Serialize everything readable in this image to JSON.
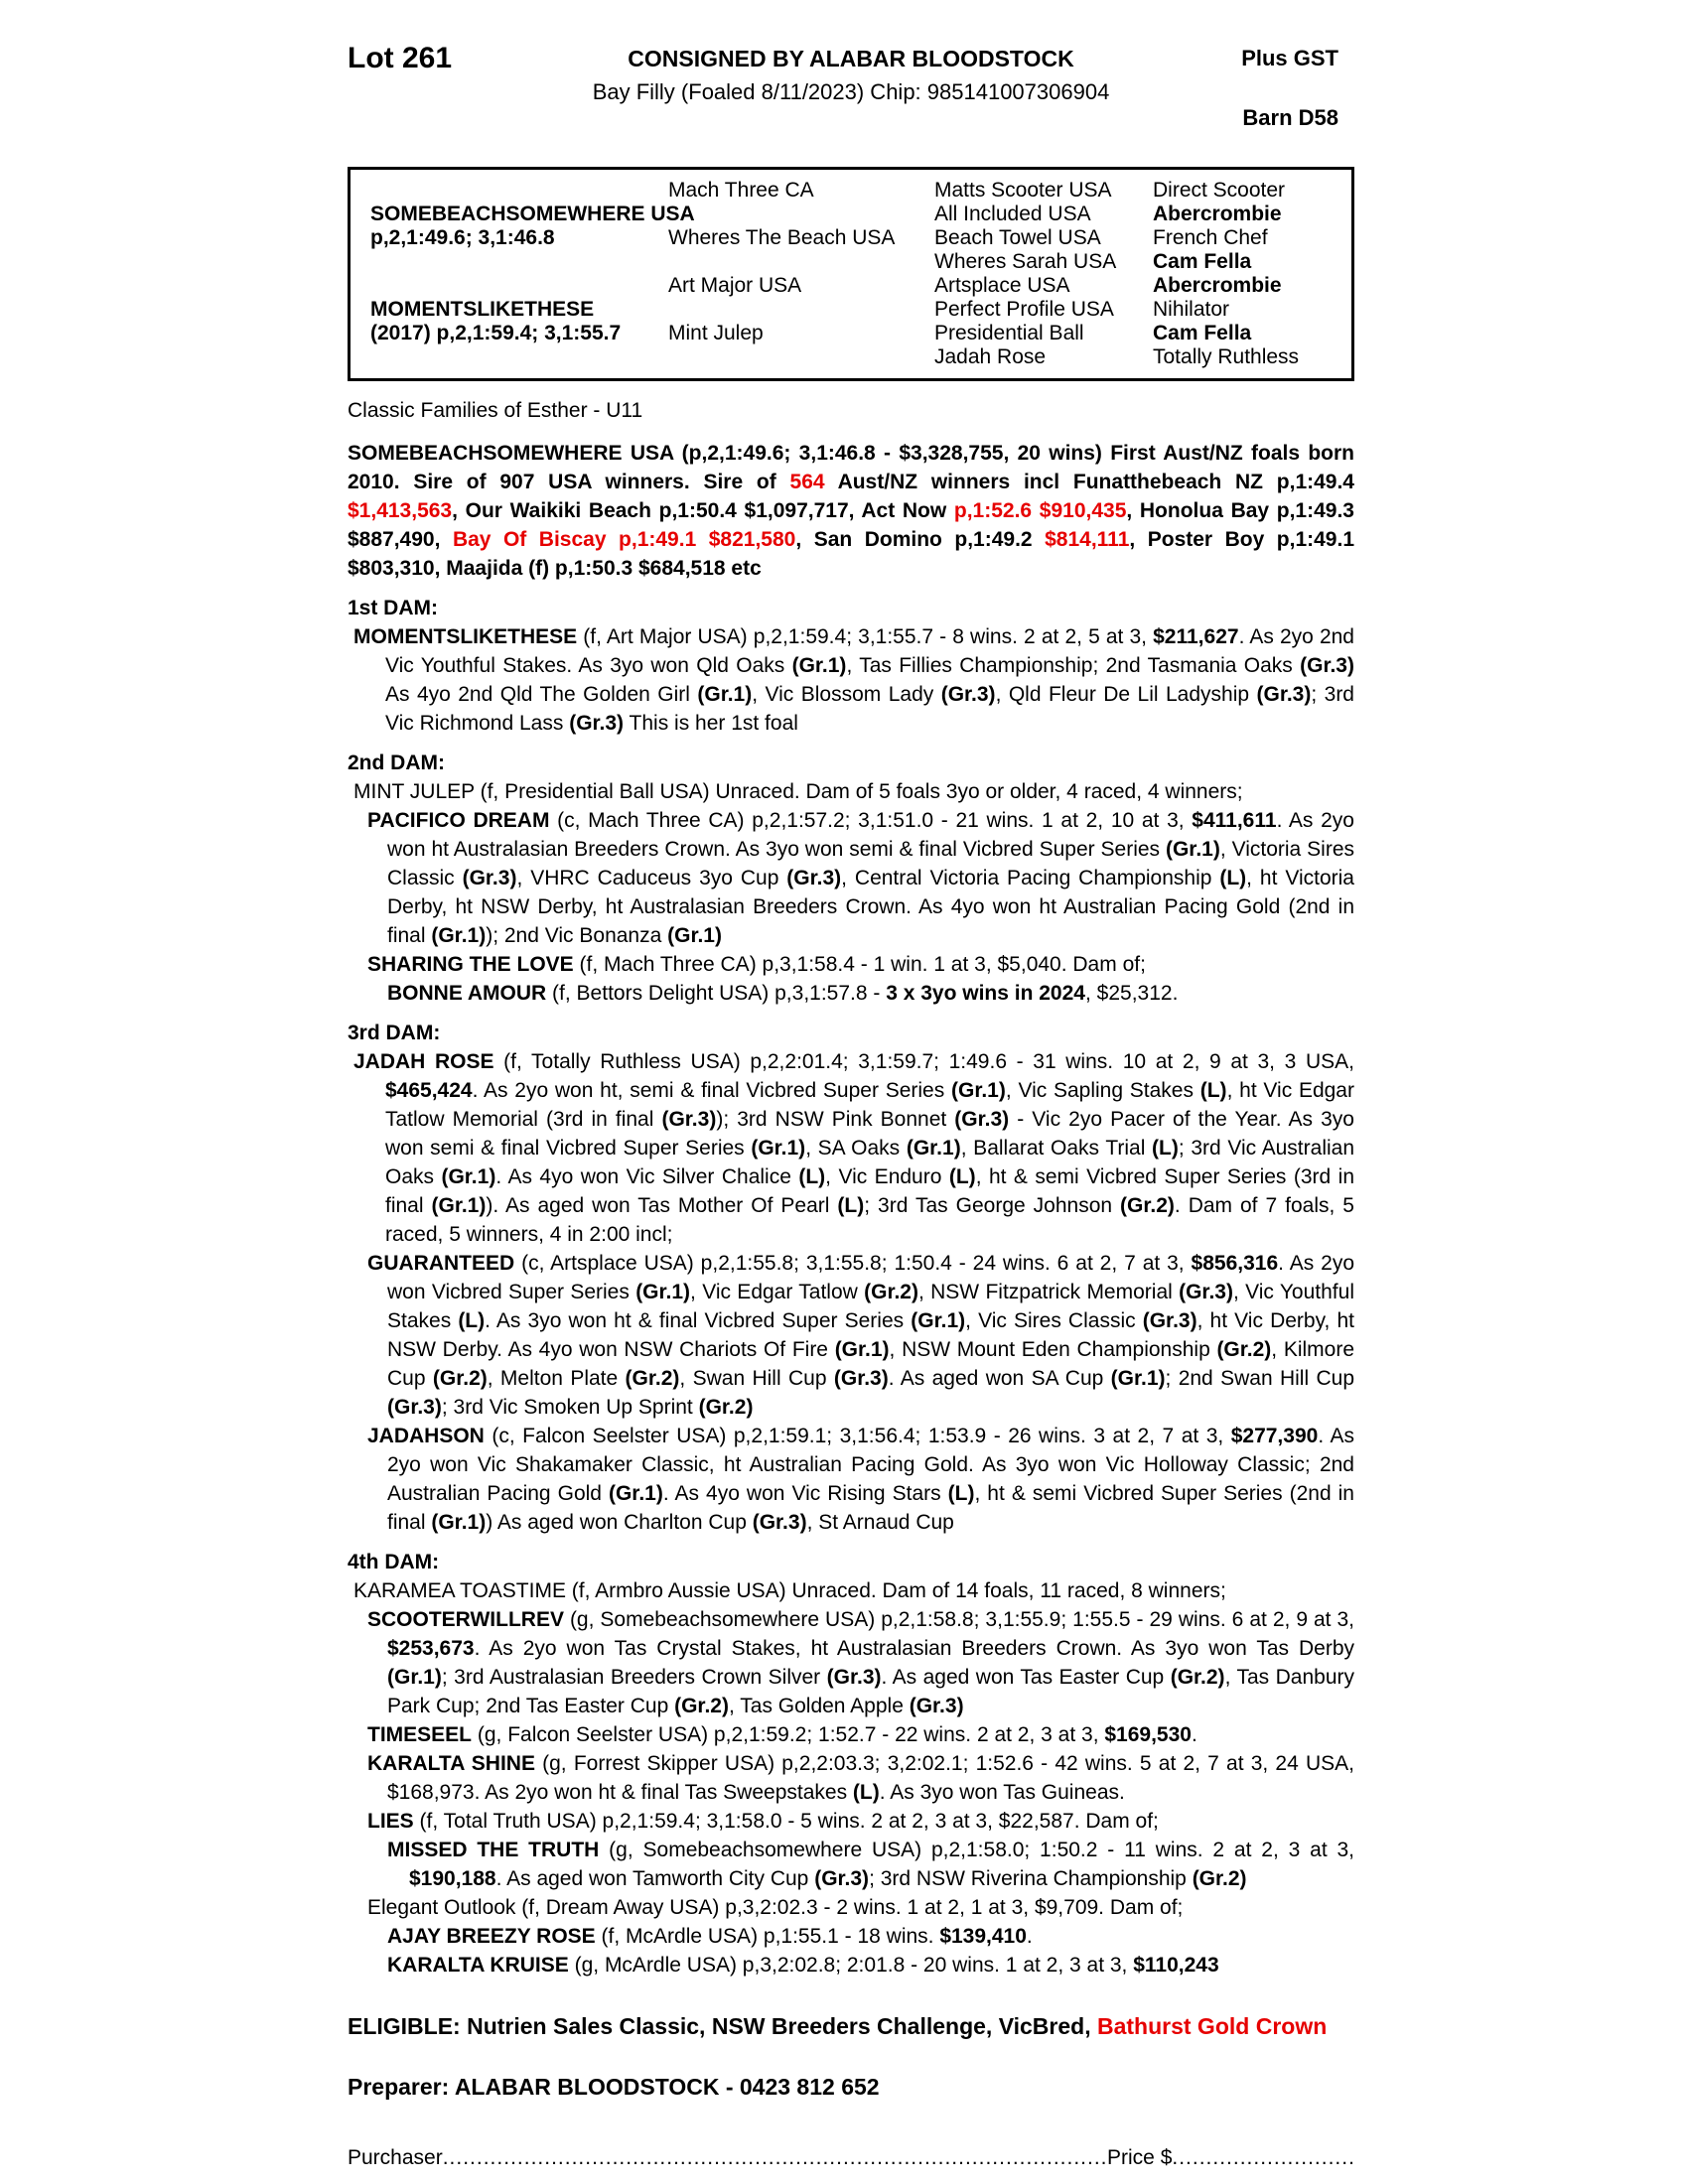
{
  "colors": {
    "accent_red": "#e60000",
    "text": "#000000",
    "table_border": "#000000"
  },
  "header": {
    "lot": "Lot 261",
    "consignor": "CONSIGNED BY ALABAR BLOODSTOCK",
    "subtitle": "Bay Filly (Foaled 8/11/2023) Chip: 985141007306904",
    "gst": "Plus GST",
    "barn": "Barn D58"
  },
  "pedigree": {
    "grid": [
      [
        {
          "t": "",
          "b": false
        },
        {
          "t": "Mach Three CA",
          "b": false
        },
        {
          "t": "Matts Scooter USA",
          "b": false
        },
        {
          "t": "Direct Scooter",
          "b": false
        }
      ],
      [
        {
          "t": "SOMEBEACHSOMEWHERE USA",
          "b": true
        },
        {
          "t": "",
          "b": false
        },
        {
          "t": "All Included USA",
          "b": false
        },
        {
          "t": "Abercrombie",
          "b": true
        }
      ],
      [
        {
          "t": "p,2,1:49.6; 3,1:46.8",
          "b": true
        },
        {
          "t": "Wheres The Beach USA",
          "b": false
        },
        {
          "t": "Beach Towel USA",
          "b": false
        },
        {
          "t": "French Chef",
          "b": false
        }
      ],
      [
        {
          "t": "",
          "b": false
        },
        {
          "t": "",
          "b": false
        },
        {
          "t": "Wheres Sarah USA",
          "b": false
        },
        {
          "t": "Cam Fella",
          "b": true
        }
      ],
      [
        {
          "t": "",
          "b": false
        },
        {
          "t": "Art Major USA",
          "b": false
        },
        {
          "t": "Artsplace USA",
          "b": false
        },
        {
          "t": "Abercrombie",
          "b": true
        }
      ],
      [
        {
          "t": "MOMENTSLIKETHESE",
          "b": true
        },
        {
          "t": "",
          "b": false
        },
        {
          "t": "Perfect Profile USA",
          "b": false
        },
        {
          "t": "Nihilator",
          "b": false
        }
      ],
      [
        {
          "t": "(2017) p,2,1:59.4; 3,1:55.7",
          "b": true
        },
        {
          "t": "Mint Julep",
          "b": false
        },
        {
          "t": "Presidential Ball",
          "b": false
        },
        {
          "t": "Cam Fella",
          "b": true
        }
      ],
      [
        {
          "t": "",
          "b": false
        },
        {
          "t": "",
          "b": false
        },
        {
          "t": "Jadah Rose",
          "b": false
        },
        {
          "t": "Totally Ruthless",
          "b": false
        }
      ]
    ]
  },
  "family_line": "Classic Families of Esther - U11",
  "sire_para": [
    {
      "t": "SOMEBEACHSOMEWHERE USA (p,2,1:49.6;  3,1:46.8 - $3,328,755, 20 wins) First Aust/NZ foals born 2010. Sire of 907 USA winners. Sire of ",
      "b": true
    },
    {
      "t": "564",
      "b": true,
      "r": true
    },
    {
      "t": " Aust/NZ winners incl Funatthebeach NZ p,1:49.4 ",
      "b": true
    },
    {
      "t": "$1,413,563",
      "b": true,
      "r": true
    },
    {
      "t": ", Our Waikiki Beach p,1:50.4 $1,097,717, Act Now ",
      "b": true
    },
    {
      "t": "p,1:52.6 $910,435",
      "b": true,
      "r": true
    },
    {
      "t": ", Honolua Bay p,1:49.3 $887,490, ",
      "b": true
    },
    {
      "t": "Bay Of Biscay p,1:49.1 $821,580",
      "b": true,
      "r": true
    },
    {
      "t": ", San Domino p,1:49.2 ",
      "b": true
    },
    {
      "t": "$814,111",
      "b": true,
      "r": true
    },
    {
      "t": ", Poster Boy p,1:49.1 $803,310, Maajida (f) p,1:50.3 $684,518 etc",
      "b": true
    }
  ],
  "sections": [
    {
      "heading": "1st DAM:",
      "entries": [
        {
          "indent": 0,
          "segments": [
            {
              "t": "MOMENTSLIKETHESE",
              "b": true
            },
            {
              "t": " (f, Art Major USA) p,2,1:59.4; 3,1:55.7 - 8 wins. 2 at 2, 5 at 3, "
            },
            {
              "t": "$211,627",
              "b": true
            },
            {
              "t": ". As 2yo 2nd Vic Youthful Stakes. As 3yo won Qld Oaks "
            },
            {
              "t": "(Gr.1)",
              "b": true
            },
            {
              "t": ", Tas Fillies Championship; 2nd Tasmania Oaks "
            },
            {
              "t": "(Gr.3)",
              "b": true
            },
            {
              "t": " As 4yo 2nd Qld The Golden Girl "
            },
            {
              "t": "(Gr.1)",
              "b": true
            },
            {
              "t": ", Vic Blossom Lady "
            },
            {
              "t": "(Gr.3)",
              "b": true
            },
            {
              "t": ", Qld Fleur De Lil Ladyship "
            },
            {
              "t": "(Gr.3)",
              "b": true
            },
            {
              "t": "; 3rd Vic Richmond Lass "
            },
            {
              "t": "(Gr.3)",
              "b": true
            },
            {
              "t": " This is her 1st foal"
            }
          ]
        }
      ]
    },
    {
      "heading": "2nd DAM:",
      "entries": [
        {
          "indent": 0,
          "segments": [
            {
              "t": "MINT JULEP (f, Presidential Ball USA) Unraced. Dam of 5 foals 3yo or older, 4 raced, 4 winners;"
            }
          ]
        },
        {
          "indent": 1,
          "segments": [
            {
              "t": "PACIFICO DREAM",
              "b": true
            },
            {
              "t": " (c, Mach Three CA) p,2,1:57.2; 3,1:51.0 - 21 wins. 1 at 2, 10 at 3, "
            },
            {
              "t": "$411,611",
              "b": true
            },
            {
              "t": ". As 2yo won ht Australasian Breeders Crown. As 3yo won semi & final Vicbred Super Series "
            },
            {
              "t": "(Gr.1)",
              "b": true
            },
            {
              "t": ", Victoria Sires Classic "
            },
            {
              "t": "(Gr.3)",
              "b": true
            },
            {
              "t": ", VHRC Caduceus 3yo Cup "
            },
            {
              "t": "(Gr.3)",
              "b": true
            },
            {
              "t": ", Central Victoria Pacing Championship "
            },
            {
              "t": "(L)",
              "b": true
            },
            {
              "t": ", ht Victoria Derby, ht NSW Derby, ht Australasian Breeders Crown. As 4yo won ht Australian Pacing Gold (2nd in final "
            },
            {
              "t": "(Gr.1)",
              "b": true
            },
            {
              "t": "); 2nd Vic Bonanza "
            },
            {
              "t": "(Gr.1)",
              "b": true
            }
          ]
        },
        {
          "indent": 1,
          "segments": [
            {
              "t": "SHARING THE LOVE",
              "b": true
            },
            {
              "t": " (f, Mach Three CA) p,3,1:58.4 - 1 win. 1 at 3, $5,040. Dam of;"
            }
          ]
        },
        {
          "indent": 2,
          "segments": [
            {
              "t": "BONNE AMOUR",
              "b": true
            },
            {
              "t": " (f, Bettors Delight USA) p,3,1:57.8 - "
            },
            {
              "t": "3 x 3yo wins in 2024",
              "b": true
            },
            {
              "t": ", $25,312."
            }
          ]
        }
      ]
    },
    {
      "heading": "3rd DAM:",
      "entries": [
        {
          "indent": 0,
          "segments": [
            {
              "t": "JADAH ROSE",
              "b": true
            },
            {
              "t": " (f, Totally Ruthless USA) p,2,2:01.4; 3,1:59.7; 1:49.6 - 31 wins. 10 at 2, 9 at 3, 3 USA, "
            },
            {
              "t": "$465,424",
              "b": true
            },
            {
              "t": ". As 2yo won ht, semi & final Vicbred Super Series "
            },
            {
              "t": "(Gr.1)",
              "b": true
            },
            {
              "t": ", Vic Sapling Stakes "
            },
            {
              "t": "(L)",
              "b": true
            },
            {
              "t": ", ht Vic Edgar Tatlow Memorial (3rd in final "
            },
            {
              "t": "(Gr.3)",
              "b": true
            },
            {
              "t": "); 3rd NSW Pink Bonnet "
            },
            {
              "t": "(Gr.3)",
              "b": true
            },
            {
              "t": " - Vic 2yo Pacer of the Year. As 3yo won semi & final Vicbred Super Series "
            },
            {
              "t": "(Gr.1)",
              "b": true
            },
            {
              "t": ", SA Oaks "
            },
            {
              "t": "(Gr.1)",
              "b": true
            },
            {
              "t": ", Ballarat Oaks Trial "
            },
            {
              "t": "(L)",
              "b": true
            },
            {
              "t": "; 3rd Vic Australian Oaks "
            },
            {
              "t": "(Gr.1)",
              "b": true
            },
            {
              "t": ". As 4yo won Vic Silver Chalice "
            },
            {
              "t": "(L)",
              "b": true
            },
            {
              "t": ", Vic Enduro "
            },
            {
              "t": "(L)",
              "b": true
            },
            {
              "t": ", ht & semi Vicbred Super Series (3rd in final "
            },
            {
              "t": "(Gr.1)",
              "b": true
            },
            {
              "t": "). As aged won Tas Mother Of Pearl "
            },
            {
              "t": "(L)",
              "b": true
            },
            {
              "t": "; 3rd Tas George Johnson "
            },
            {
              "t": "(Gr.2)",
              "b": true
            },
            {
              "t": ". Dam of 7 foals, 5 raced, 5 winners, 4 in 2:00 incl;"
            }
          ]
        },
        {
          "indent": 1,
          "segments": [
            {
              "t": "GUARANTEED",
              "b": true
            },
            {
              "t": " (c, Artsplace USA) p,2,1:55.8; 3,1:55.8; 1:50.4 - 24 wins. 6 at 2, 7 at 3, "
            },
            {
              "t": "$856,316",
              "b": true
            },
            {
              "t": ". As 2yo won Vicbred Super Series "
            },
            {
              "t": "(Gr.1)",
              "b": true
            },
            {
              "t": ", Vic Edgar Tatlow "
            },
            {
              "t": "(Gr.2)",
              "b": true
            },
            {
              "t": ", NSW Fitzpatrick Memorial "
            },
            {
              "t": "(Gr.3)",
              "b": true
            },
            {
              "t": ", Vic Youthful Stakes "
            },
            {
              "t": "(L)",
              "b": true
            },
            {
              "t": ". As 3yo won ht & final Vicbred Super Series "
            },
            {
              "t": "(Gr.1)",
              "b": true
            },
            {
              "t": ", Vic Sires Classic "
            },
            {
              "t": "(Gr.3)",
              "b": true
            },
            {
              "t": ", ht Vic Derby, ht NSW Derby. As 4yo won NSW Chariots Of Fire "
            },
            {
              "t": "(Gr.1)",
              "b": true
            },
            {
              "t": ", NSW Mount Eden Championship "
            },
            {
              "t": "(Gr.2)",
              "b": true
            },
            {
              "t": ", Kilmore Cup "
            },
            {
              "t": "(Gr.2)",
              "b": true
            },
            {
              "t": ", Melton Plate "
            },
            {
              "t": "(Gr.2)",
              "b": true
            },
            {
              "t": ", Swan Hill Cup "
            },
            {
              "t": "(Gr.3)",
              "b": true
            },
            {
              "t": ". As aged won SA Cup "
            },
            {
              "t": "(Gr.1)",
              "b": true
            },
            {
              "t": "; 2nd Swan Hill Cup "
            },
            {
              "t": "(Gr.3)",
              "b": true
            },
            {
              "t": "; 3rd Vic Smoken Up Sprint "
            },
            {
              "t": "(Gr.2)",
              "b": true
            }
          ]
        },
        {
          "indent": 1,
          "segments": [
            {
              "t": "JADAHSON",
              "b": true
            },
            {
              "t": " (c, Falcon Seelster USA) p,2,1:59.1; 3,1:56.4; 1:53.9 - 26 wins. 3 at 2, 7 at 3, "
            },
            {
              "t": "$277,390",
              "b": true
            },
            {
              "t": ". As 2yo won Vic Shakamaker Classic, ht Australian Pacing Gold. As 3yo won Vic Holloway Classic; 2nd Australian Pacing Gold "
            },
            {
              "t": "(Gr.1)",
              "b": true
            },
            {
              "t": ". As 4yo won Vic Rising Stars "
            },
            {
              "t": "(L)",
              "b": true
            },
            {
              "t": ", ht & semi Vicbred Super Series (2nd in final "
            },
            {
              "t": "(Gr.1)",
              "b": true
            },
            {
              "t": ") As aged won Charlton Cup "
            },
            {
              "t": "(Gr.3)",
              "b": true
            },
            {
              "t": ", St Arnaud Cup"
            }
          ]
        }
      ]
    },
    {
      "heading": "4th DAM:",
      "entries": [
        {
          "indent": 0,
          "segments": [
            {
              "t": "KARAMEA TOASTIME (f, Armbro Aussie USA) Unraced. Dam of 14 foals, 11 raced, 8 winners;"
            }
          ]
        },
        {
          "indent": 1,
          "segments": [
            {
              "t": "SCOOTERWILLREV",
              "b": true
            },
            {
              "t": " (g, Somebeachsomewhere USA) p,2,1:58.8; 3,1:55.9; 1:55.5 - 29 wins. 6 at 2, 9 at 3, "
            },
            {
              "t": "$253,673",
              "b": true
            },
            {
              "t": ". As 2yo won Tas Crystal Stakes, ht Australasian Breeders Crown. As 3yo won Tas Derby "
            },
            {
              "t": "(Gr.1)",
              "b": true
            },
            {
              "t": "; 3rd Australasian Breeders Crown Silver "
            },
            {
              "t": "(Gr.3)",
              "b": true
            },
            {
              "t": ". As aged won Tas Easter Cup "
            },
            {
              "t": "(Gr.2)",
              "b": true
            },
            {
              "t": ", Tas Danbury Park Cup; 2nd Tas Easter Cup "
            },
            {
              "t": "(Gr.2)",
              "b": true
            },
            {
              "t": ", Tas Golden Apple "
            },
            {
              "t": "(Gr.3)",
              "b": true
            }
          ]
        },
        {
          "indent": 1,
          "segments": [
            {
              "t": "TIMESEEL",
              "b": true
            },
            {
              "t": " (g, Falcon Seelster USA) p,2,1:59.2; 1:52.7 - 22 wins. 2 at 2, 3 at 3, "
            },
            {
              "t": "$169,530",
              "b": true
            },
            {
              "t": "."
            }
          ]
        },
        {
          "indent": 1,
          "segments": [
            {
              "t": "KARALTA SHINE",
              "b": true
            },
            {
              "t": " (g, Forrest Skipper USA) p,2,2:03.3; 3,2:02.1; 1:52.6 - 42 wins. 5 at 2, 7 at 3, 24 USA, $168,973. As 2yo won ht & final Tas Sweepstakes "
            },
            {
              "t": "(L)",
              "b": true
            },
            {
              "t": ". As 3yo won Tas Guineas."
            }
          ]
        },
        {
          "indent": 1,
          "segments": [
            {
              "t": "LIES",
              "b": true
            },
            {
              "t": " (f, Total Truth USA) p,2,1:59.4; 3,1:58.0 - 5 wins. 2 at 2, 3 at 3, $22,587. Dam of;"
            }
          ]
        },
        {
          "indent": 2,
          "segments": [
            {
              "t": "MISSED THE TRUTH",
              "b": true
            },
            {
              "t": " (g, Somebeachsomewhere USA) p,2,1:58.0; 1:50.2 - 11 wins. 2 at 2, 3 at 3, "
            },
            {
              "t": "$190,188",
              "b": true
            },
            {
              "t": ". As aged won Tamworth City Cup "
            },
            {
              "t": "(Gr.3)",
              "b": true
            },
            {
              "t": "; 3rd NSW Riverina Championship "
            },
            {
              "t": "(Gr.2)",
              "b": true
            }
          ]
        },
        {
          "indent": 1,
          "segments": [
            {
              "t": "Elegant Outlook (f, Dream Away USA) p,3,2:02.3 - 2 wins. 1 at 2, 1 at 3, $9,709. Dam of;"
            }
          ]
        },
        {
          "indent": 2,
          "segments": [
            {
              "t": "AJAY BREEZY ROSE",
              "b": true
            },
            {
              "t": " (f, McArdle USA) p,1:55.1 - 18 wins. "
            },
            {
              "t": "$139,410",
              "b": true
            },
            {
              "t": "."
            }
          ]
        },
        {
          "indent": 2,
          "segments": [
            {
              "t": "KARALTA KRUISE",
              "b": true
            },
            {
              "t": " (g, McArdle USA) p,3,2:02.8; 2:01.8 - 20 wins. 1 at 2, 3 at 3, "
            },
            {
              "t": "$110,243",
              "b": true
            }
          ]
        }
      ]
    }
  ],
  "eligible": [
    {
      "t": "ELIGIBLE: Nutrien Sales Classic, NSW Breeders Challenge, VicBred, ",
      "b": true
    },
    {
      "t": "Bathurst Gold Crown",
      "b": true,
      "r": true
    }
  ],
  "preparer": "Preparer: ALABAR BLOODSTOCK - 0423 812 652",
  "purchaser_line": {
    "label": "Purchaser",
    "leader1": "........................................................................................................................................",
    "price_label": "Price $",
    "leader2": "........................................................................................................................................"
  }
}
